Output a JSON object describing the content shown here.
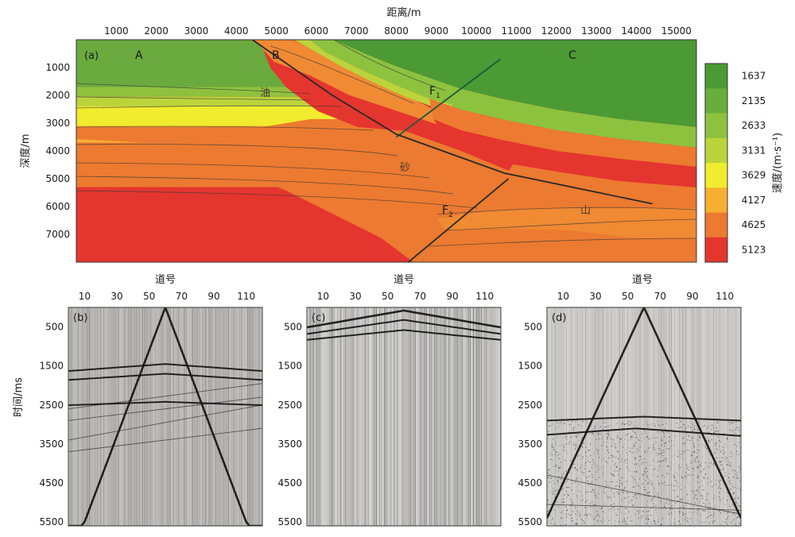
{
  "chart_data": [
    {
      "type": "heatmap",
      "panel_label": "(a)",
      "xlabel": "距离/m",
      "ylabel": "深度/m",
      "xlim": [
        0,
        15500
      ],
      "ylim": [
        0,
        8000
      ],
      "xticks": [
        "1000",
        "2000",
        "3000",
        "4000",
        "5000",
        "6000",
        "7000",
        "8000",
        "9000",
        "10000",
        "11000",
        "12000",
        "13000",
        "14000",
        "15000"
      ],
      "yticks": [
        "1000",
        "2000",
        "3000",
        "4000",
        "5000",
        "6000",
        "7000"
      ],
      "colorbar": {
        "label": "速度/(m·s⁻¹)",
        "ticks": [
          "1637",
          "2135",
          "2633",
          "3131",
          "3629",
          "4127",
          "4625",
          "5123"
        ],
        "colors": [
          "#4b9a34",
          "#68ae3c",
          "#8dc23f",
          "#bcd43c",
          "#f1ec2e",
          "#f5b031",
          "#ec7a30",
          "#e5352f"
        ]
      },
      "region_labels": [
        "A",
        "B",
        "C"
      ],
      "fault_labels": [
        {
          "text": "F",
          "sub": "1"
        },
        {
          "text": "F",
          "sub": "2"
        }
      ],
      "lithology_labels": [
        "油",
        "砂",
        "山"
      ],
      "faults": [
        {
          "name": "F1",
          "points": [
            [
              10600,
              700
            ],
            [
              8000,
              3500
            ]
          ]
        },
        {
          "name": "F2",
          "points": [
            [
              10800,
              5000
            ],
            [
              8300,
              8000
            ]
          ]
        },
        {
          "name": "main",
          "points": [
            [
              4400,
              0
            ],
            [
              5100,
              700
            ],
            [
              6400,
              2000
            ],
            [
              8000,
              3400
            ],
            [
              10700,
              4800
            ],
            [
              14400,
              5900
            ]
          ]
        }
      ],
      "layers_left": [
        {
          "top": 0,
          "base": 1700,
          "color": "#6aaa3e"
        },
        {
          "top": 1700,
          "base": 2050,
          "color": "#8fc13f"
        },
        {
          "top": 2050,
          "base": 2400,
          "color": "#bcd43c"
        },
        {
          "top": 2400,
          "base": 3100,
          "color": "#f1ec2e"
        },
        {
          "top": 3100,
          "base": 3700,
          "color": "#f5b031"
        },
        {
          "top": 3700,
          "base": 5300,
          "color": "#ec7a30"
        },
        {
          "top": 5300,
          "base": 8000,
          "color": "#e5352f"
        }
      ]
    },
    {
      "type": "scatter",
      "panel_label": "(b)",
      "xlabel": "道号",
      "ylabel": "时间/ms",
      "xlim": [
        0,
        120
      ],
      "ylim": [
        0,
        5600
      ],
      "xticks": [
        "10",
        "30",
        "50",
        "70",
        "90",
        "110"
      ],
      "yticks": [
        "500",
        "1500",
        "2500",
        "3500",
        "4500",
        "5500"
      ],
      "events": [
        {
          "kind": "hyperbola",
          "t0": 0,
          "apex": 60,
          "slope": 11
        },
        {
          "kind": "hyperbola",
          "t0": 1450,
          "apex": 60,
          "slope": 2.5
        },
        {
          "kind": "hyperbola",
          "t0": 1700,
          "apex": 60,
          "slope": 2.2
        },
        {
          "kind": "hyperbola",
          "t0": 2420,
          "apex": 60,
          "slope": 1.2
        },
        {
          "kind": "line",
          "t_start": 2600,
          "t_end": 1950
        },
        {
          "kind": "line",
          "t_start": 2900,
          "t_end": 2300
        },
        {
          "kind": "line",
          "t_start": 3400,
          "t_end": 2500
        },
        {
          "kind": "line",
          "t_start": 3700,
          "t_end": 3100
        }
      ]
    },
    {
      "type": "scatter",
      "panel_label": "(c)",
      "xlabel": "道号",
      "ylabel": "",
      "xlim": [
        0,
        120
      ],
      "ylim": [
        0,
        5600
      ],
      "xticks": [
        "10",
        "30",
        "50",
        "70",
        "90",
        "110"
      ],
      "yticks": [
        "500",
        "1500",
        "2500",
        "3500",
        "4500",
        "5500"
      ],
      "events": [
        {
          "kind": "hyperbola",
          "t0": 80,
          "apex": 60,
          "slope": 6
        },
        {
          "kind": "hyperbola",
          "t0": 320,
          "apex": 60,
          "slope": 5
        },
        {
          "kind": "hyperbola",
          "t0": 580,
          "apex": 60,
          "slope": 3.5
        }
      ]
    },
    {
      "type": "scatter",
      "panel_label": "(d)",
      "xlabel": "道号",
      "ylabel": "",
      "xlim": [
        0,
        120
      ],
      "ylim": [
        0,
        5600
      ],
      "xticks": [
        "10",
        "30",
        "50",
        "70",
        "90",
        "110"
      ],
      "yticks": [
        "500",
        "1500",
        "2500",
        "3500",
        "4500",
        "5500"
      ],
      "events": [
        {
          "kind": "hyperbola",
          "t0": 0,
          "apex": 60,
          "slope": 9
        },
        {
          "kind": "hyperbola",
          "t0": 2800,
          "apex": 60,
          "slope": 1.4
        },
        {
          "kind": "hyperbola",
          "t0": 3100,
          "apex": 55,
          "slope": 2.5
        },
        {
          "kind": "line",
          "t_start": 4300,
          "t_end": 5300
        },
        {
          "kind": "line",
          "t_start": 5050,
          "t_end": 5200
        }
      ]
    }
  ]
}
